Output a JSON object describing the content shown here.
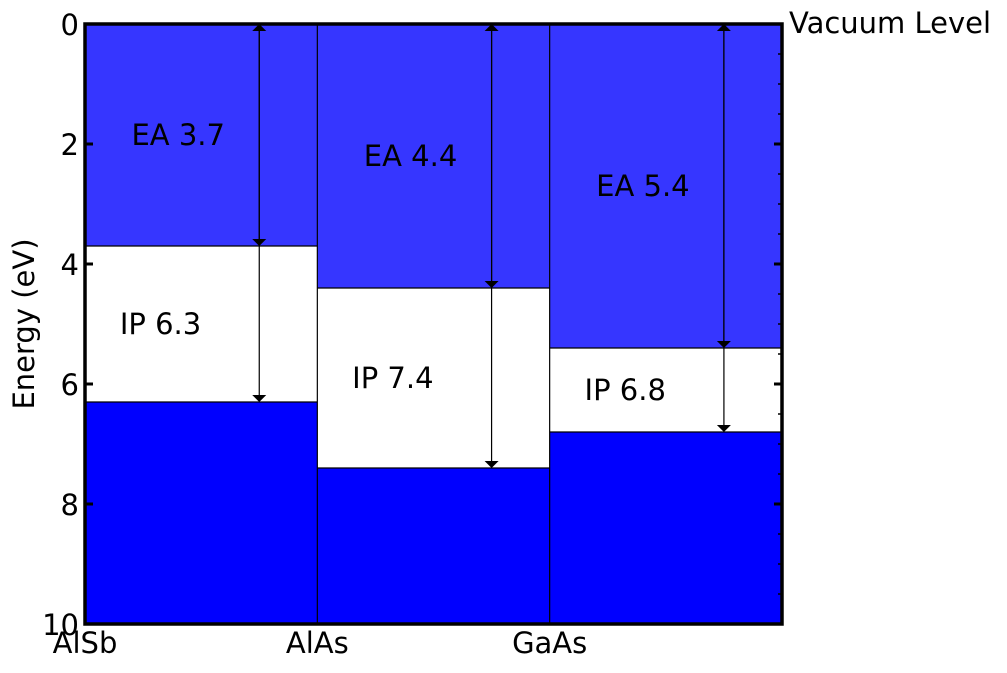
{
  "chart_data": {
    "type": "band-alignment",
    "ylabel": "Energy (eV)",
    "ylim": [
      0,
      10
    ],
    "y_inverted": true,
    "yticks": [
      "0",
      "2",
      "4",
      "6",
      "8",
      "10"
    ],
    "categories": [
      "AlSb",
      "AlAs",
      "GaAs"
    ],
    "top_annotation": "Vacuum Level",
    "materials": [
      {
        "name": "AlSb",
        "electron_affinity": 3.7,
        "ionization_potential": 6.3,
        "ea_label": "EA 3.7",
        "ip_label": "IP  6.3"
      },
      {
        "name": "AlAs",
        "electron_affinity": 4.4,
        "ionization_potential": 7.4,
        "ea_label": "EA 4.4",
        "ip_label": "IP  7.4"
      },
      {
        "name": "GaAs",
        "electron_affinity": 5.4,
        "ionization_potential": 6.8,
        "ea_label": "EA 5.4",
        "ip_label": "IP  6.8"
      }
    ],
    "colors": {
      "conduction_region": "#3636ff",
      "valence_region": "#0000ff",
      "gap_region": "#ffffff",
      "lines": "#000000"
    },
    "grid": false
  }
}
